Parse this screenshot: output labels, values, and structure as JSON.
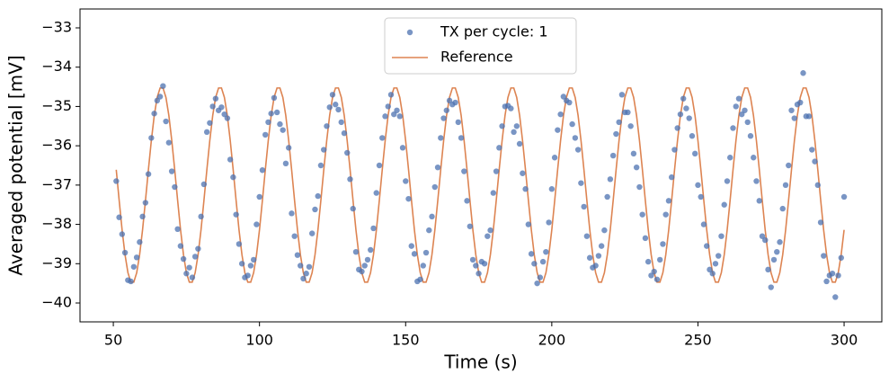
{
  "chart_data": {
    "type": "scatter",
    "xlabel": "Time (s)",
    "ylabel": "Averaged potential [mV]",
    "xlim": [
      38.6,
      312.9
    ],
    "ylim": [
      -40.48,
      -32.52
    ],
    "xticks": [
      50,
      100,
      150,
      200,
      250,
      300
    ],
    "yticks": [
      {
        "value": -40,
        "label": "−40"
      },
      {
        "value": -39,
        "label": "−39"
      },
      {
        "value": -38,
        "label": "−38"
      },
      {
        "value": -37,
        "label": "−37"
      },
      {
        "value": -36,
        "label": "−36"
      },
      {
        "value": -35,
        "label": "−35"
      },
      {
        "value": -34,
        "label": "−34"
      },
      {
        "value": -33,
        "label": "−33"
      }
    ],
    "legend": "upper center",
    "x": [
      51,
      52,
      53,
      54,
      55,
      56,
      57,
      58,
      59,
      60,
      61,
      62,
      63,
      64,
      65,
      66,
      67,
      68,
      69,
      70,
      71,
      72,
      73,
      74,
      75,
      76,
      77,
      78,
      79,
      80,
      81,
      82,
      83,
      84,
      85,
      86,
      87,
      88,
      89,
      90,
      91,
      92,
      93,
      94,
      95,
      96,
      97,
      98,
      99,
      100,
      101,
      102,
      103,
      104,
      105,
      106,
      107,
      108,
      109,
      110,
      111,
      112,
      113,
      114,
      115,
      116,
      117,
      118,
      119,
      120,
      121,
      122,
      123,
      124,
      125,
      126,
      127,
      128,
      129,
      130,
      131,
      132,
      133,
      134,
      135,
      136,
      137,
      138,
      139,
      140,
      141,
      142,
      143,
      144,
      145,
      146,
      147,
      148,
      149,
      150,
      151,
      152,
      153,
      154,
      155,
      156,
      157,
      158,
      159,
      160,
      161,
      162,
      163,
      164,
      165,
      166,
      167,
      168,
      169,
      170,
      171,
      172,
      173,
      174,
      175,
      176,
      177,
      178,
      179,
      180,
      181,
      182,
      183,
      184,
      185,
      186,
      187,
      188,
      189,
      190,
      191,
      192,
      193,
      194,
      195,
      196,
      197,
      198,
      199,
      200,
      201,
      202,
      203,
      204,
      205,
      206,
      207,
      208,
      209,
      210,
      211,
      212,
      213,
      214,
      215,
      216,
      217,
      218,
      219,
      220,
      221,
      222,
      223,
      224,
      225,
      226,
      227,
      228,
      229,
      230,
      231,
      232,
      233,
      234,
      235,
      236,
      237,
      238,
      239,
      240,
      241,
      242,
      243,
      244,
      245,
      246,
      247,
      248,
      249,
      250,
      251,
      252,
      253,
      254,
      255,
      256,
      257,
      258,
      259,
      260,
      261,
      262,
      263,
      264,
      265,
      266,
      267,
      268,
      269,
      270,
      271,
      272,
      273,
      274,
      275,
      276,
      277,
      278,
      279,
      280,
      281,
      282,
      283,
      284,
      285,
      286,
      287,
      288,
      289,
      290,
      291,
      292,
      293,
      294,
      295,
      296,
      297,
      298,
      299,
      300
    ],
    "series": [
      {
        "name": "TX per cycle: 1",
        "type": "scatter",
        "color": "#4c72b0",
        "values": [
          -36.9,
          -37.82,
          -38.25,
          -38.72,
          -39.42,
          -39.45,
          -39.08,
          -38.84,
          -38.45,
          -37.8,
          -37.45,
          -36.72,
          -35.8,
          -35.18,
          -34.85,
          -34.75,
          -34.48,
          -35.38,
          -35.92,
          -36.65,
          -37.05,
          -38.12,
          -38.55,
          -38.88,
          -39.25,
          -39.1,
          -39.35,
          -38.82,
          -38.62,
          -37.8,
          -36.98,
          -35.65,
          -35.42,
          -35.0,
          -34.8,
          -35.1,
          -35.02,
          -35.2,
          -35.3,
          -36.35,
          -36.8,
          -37.75,
          -38.5,
          -39.0,
          -39.35,
          -39.3,
          -39.05,
          -38.9,
          -38.0,
          -37.3,
          -36.62,
          -35.72,
          -35.4,
          -35.18,
          -34.78,
          -35.15,
          -35.45,
          -35.6,
          -36.45,
          -36.05,
          -37.72,
          -38.3,
          -38.78,
          -39.05,
          -39.38,
          -39.25,
          -39.08,
          -38.23,
          -37.62,
          -37.28,
          -36.5,
          -36.1,
          -35.5,
          -35.02,
          -34.7,
          -34.95,
          -35.08,
          -35.4,
          -35.68,
          -36.18,
          -36.85,
          -37.6,
          -38.7,
          -39.15,
          -39.2,
          -39.05,
          -38.9,
          -38.65,
          -38.1,
          -37.2,
          -36.5,
          -35.8,
          -35.25,
          -35.0,
          -34.7,
          -35.2,
          -35.1,
          -35.25,
          -36.05,
          -36.9,
          -37.35,
          -38.55,
          -38.75,
          -39.45,
          -39.4,
          -39.05,
          -38.72,
          -38.15,
          -37.8,
          -37.05,
          -36.55,
          -35.8,
          -35.3,
          -35.1,
          -34.85,
          -34.95,
          -34.9,
          -35.4,
          -35.8,
          -36.65,
          -37.4,
          -38.05,
          -38.9,
          -39.05,
          -39.25,
          -38.95,
          -39.0,
          -38.3,
          -38.15,
          -37.2,
          -36.65,
          -36.05,
          -35.5,
          -35.0,
          -34.98,
          -35.05,
          -35.65,
          -35.5,
          -35.95,
          -36.7,
          -37.1,
          -38.0,
          -38.75,
          -39.0,
          -39.5,
          -39.35,
          -38.95,
          -38.7,
          -37.95,
          -37.1,
          -36.3,
          -35.6,
          -35.2,
          -34.75,
          -34.85,
          -34.9,
          -35.45,
          -35.8,
          -36.1,
          -36.95,
          -37.55,
          -38.3,
          -38.85,
          -39.1,
          -39.05,
          -38.8,
          -38.55,
          -38.15,
          -37.3,
          -36.85,
          -36.25,
          -35.7,
          -35.4,
          -34.7,
          -35.15,
          -35.15,
          -35.5,
          -36.2,
          -36.55,
          -37.05,
          -37.75,
          -38.35,
          -38.95,
          -39.3,
          -39.2,
          -39.4,
          -38.9,
          -38.5,
          -37.75,
          -37.4,
          -36.8,
          -36.1,
          -35.55,
          -35.2,
          -34.8,
          -35.05,
          -35.3,
          -35.75,
          -36.2,
          -37.0,
          -37.3,
          -38.0,
          -38.55,
          -39.15,
          -39.25,
          -39.0,
          -38.8,
          -38.3,
          -37.5,
          -36.9,
          -36.3,
          -35.55,
          -35.0,
          -34.8,
          -35.2,
          -35.1,
          -35.4,
          -35.75,
          -36.3,
          -36.9,
          -37.4,
          -38.3,
          -38.4,
          -39.15,
          -39.6,
          -38.9,
          -38.7,
          -38.45,
          -37.6,
          -37.0,
          -36.5,
          -35.1,
          -35.3,
          -34.95,
          -34.9,
          -34.15,
          -35.25,
          -35.25,
          -36.1,
          -36.4,
          -37.0,
          -37.95,
          -38.8,
          -39.45,
          -39.3,
          -39.25,
          -39.85,
          -39.3,
          -38.85,
          -37.3
        ]
      },
      {
        "name": "Reference",
        "type": "line",
        "color": "#dd8452",
        "values": [
          -36.61,
          -37.39,
          -38.14,
          -38.77,
          -39.23,
          -39.47,
          -39.47,
          -39.23,
          -38.77,
          -38.14,
          -37.39,
          -36.61,
          -35.87,
          -35.23,
          -34.77,
          -34.53,
          -34.53,
          -34.77,
          -35.23,
          -35.87,
          -36.61,
          -37.39,
          -38.14,
          -38.77,
          -39.23,
          -39.47,
          -39.47,
          -39.23,
          -38.77,
          -38.14,
          -37.39,
          -36.61,
          -35.87,
          -35.23,
          -34.77,
          -34.53,
          -34.53,
          -34.77,
          -35.23,
          -35.87,
          -36.61,
          -37.39,
          -38.14,
          -38.77,
          -39.23,
          -39.47,
          -39.47,
          -39.23,
          -38.77,
          -38.14,
          -37.39,
          -36.61,
          -35.87,
          -35.23,
          -34.77,
          -34.53,
          -34.53,
          -34.77,
          -35.23,
          -35.87,
          -36.61,
          -37.39,
          -38.14,
          -38.77,
          -39.23,
          -39.47,
          -39.47,
          -39.23,
          -38.77,
          -38.14,
          -37.39,
          -36.61,
          -35.87,
          -35.23,
          -34.77,
          -34.53,
          -34.53,
          -34.77,
          -35.23,
          -35.87,
          -36.61,
          -37.39,
          -38.14,
          -38.77,
          -39.23,
          -39.47,
          -39.47,
          -39.23,
          -38.77,
          -38.14,
          -37.39,
          -36.61,
          -35.87,
          -35.23,
          -34.77,
          -34.53,
          -34.53,
          -34.77,
          -35.23,
          -35.87,
          -36.61,
          -37.39,
          -38.14,
          -38.77,
          -39.23,
          -39.47,
          -39.47,
          -39.23,
          -38.77,
          -38.14,
          -37.39,
          -36.61,
          -35.87,
          -35.23,
          -34.77,
          -34.53,
          -34.53,
          -34.77,
          -35.23,
          -35.87,
          -36.61,
          -37.39,
          -38.14,
          -38.77,
          -39.23,
          -39.47,
          -39.47,
          -39.23,
          -38.77,
          -38.14,
          -37.39,
          -36.61,
          -35.87,
          -35.23,
          -34.77,
          -34.53,
          -34.53,
          -34.77,
          -35.23,
          -35.87,
          -36.61,
          -37.39,
          -38.14,
          -38.77,
          -39.23,
          -39.47,
          -39.47,
          -39.23,
          -38.77,
          -38.14,
          -37.39,
          -36.61,
          -35.87,
          -35.23,
          -34.77,
          -34.53,
          -34.53,
          -34.77,
          -35.23,
          -35.87,
          -36.61,
          -37.39,
          -38.14,
          -38.77,
          -39.23,
          -39.47,
          -39.47,
          -39.23,
          -38.77,
          -38.14,
          -37.39,
          -36.61,
          -35.87,
          -35.23,
          -34.77,
          -34.53,
          -34.53,
          -34.77,
          -35.23,
          -35.87,
          -36.61,
          -37.39,
          -38.14,
          -38.77,
          -39.23,
          -39.47,
          -39.47,
          -39.23,
          -38.77,
          -38.14,
          -37.39,
          -36.61,
          -35.87,
          -35.23,
          -34.77,
          -34.53,
          -34.53,
          -34.77,
          -35.23,
          -35.87,
          -36.61,
          -37.39,
          -38.14,
          -38.77,
          -39.23,
          -39.47,
          -39.47,
          -39.23,
          -38.77,
          -38.14,
          -37.39,
          -36.61,
          -35.87,
          -35.23,
          -34.77,
          -34.53,
          -34.53,
          -34.77,
          -35.23,
          -35.87,
          -36.61,
          -37.39,
          -38.14,
          -38.77,
          -39.23,
          -39.47,
          -39.47,
          -39.23,
          -38.77,
          -38.14,
          -37.39,
          -36.61,
          -35.87,
          -35.23,
          -34.77,
          -34.53,
          -34.53,
          -34.77,
          -35.23,
          -35.87,
          -36.61,
          -37.39,
          -38.14,
          -38.77,
          -39.23,
          -39.47,
          -39.47,
          -39.23,
          -38.77,
          -38.14
        ]
      }
    ]
  }
}
